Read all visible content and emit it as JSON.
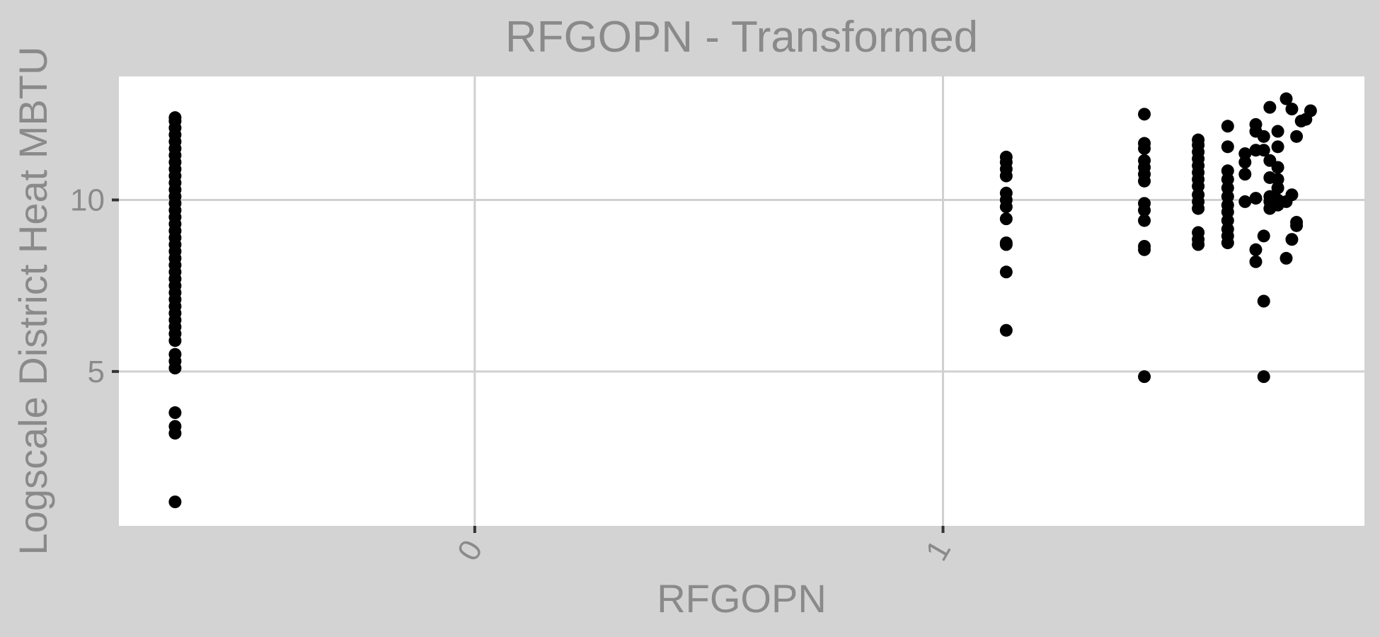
{
  "chart_data": {
    "type": "scatter",
    "title": "RFGOPN - Transformed",
    "xlabel": "RFGOPN",
    "ylabel": "Logscale District Heat MBTU",
    "x_ticks": [
      {
        "value": 0,
        "label": "0"
      },
      {
        "value": 1,
        "label": "1"
      }
    ],
    "y_ticks": [
      {
        "value": 5,
        "label": "5"
      },
      {
        "value": 10,
        "label": "10"
      }
    ],
    "xlim": [
      -0.76,
      1.9
    ],
    "ylim": [
      0.5,
      13.6
    ],
    "grid": true,
    "series": [
      {
        "values": [
          {
            "x": -0.64,
            "y": 1.2
          },
          {
            "x": -0.64,
            "y": 3.2
          },
          {
            "x": -0.64,
            "y": 3.4
          },
          {
            "x": -0.64,
            "y": 3.8
          },
          {
            "x": -0.64,
            "y": 5.1
          },
          {
            "x": -0.64,
            "y": 5.3
          },
          {
            "x": -0.64,
            "y": 5.5
          },
          {
            "x": -0.64,
            "y": 5.9
          },
          {
            "x": -0.64,
            "y": 6.1
          },
          {
            "x": -0.64,
            "y": 6.3
          },
          {
            "x": -0.64,
            "y": 6.5
          },
          {
            "x": -0.64,
            "y": 6.7
          },
          {
            "x": -0.64,
            "y": 6.9
          },
          {
            "x": -0.64,
            "y": 7.1
          },
          {
            "x": -0.64,
            "y": 7.3
          },
          {
            "x": -0.64,
            "y": 7.5
          },
          {
            "x": -0.64,
            "y": 7.7
          },
          {
            "x": -0.64,
            "y": 7.9
          },
          {
            "x": -0.64,
            "y": 8.1
          },
          {
            "x": -0.64,
            "y": 8.3
          },
          {
            "x": -0.64,
            "y": 8.5
          },
          {
            "x": -0.64,
            "y": 8.7
          },
          {
            "x": -0.64,
            "y": 8.9
          },
          {
            "x": -0.64,
            "y": 9.1
          },
          {
            "x": -0.64,
            "y": 9.3
          },
          {
            "x": -0.64,
            "y": 9.5
          },
          {
            "x": -0.64,
            "y": 9.7
          },
          {
            "x": -0.64,
            "y": 9.9
          },
          {
            "x": -0.64,
            "y": 10.1
          },
          {
            "x": -0.64,
            "y": 10.3
          },
          {
            "x": -0.64,
            "y": 10.5
          },
          {
            "x": -0.64,
            "y": 10.7
          },
          {
            "x": -0.64,
            "y": 10.9
          },
          {
            "x": -0.64,
            "y": 11.1
          },
          {
            "x": -0.64,
            "y": 11.3
          },
          {
            "x": -0.64,
            "y": 11.5
          },
          {
            "x": -0.64,
            "y": 11.7
          },
          {
            "x": -0.64,
            "y": 11.9
          },
          {
            "x": -0.64,
            "y": 12.1
          },
          {
            "x": -0.64,
            "y": 12.3
          },
          {
            "x": -0.64,
            "y": 12.4
          },
          {
            "x": 1.135,
            "y": 6.2
          },
          {
            "x": 1.135,
            "y": 7.9
          },
          {
            "x": 1.135,
            "y": 8.7
          },
          {
            "x": 1.135,
            "y": 8.75
          },
          {
            "x": 1.135,
            "y": 9.45
          },
          {
            "x": 1.135,
            "y": 9.8
          },
          {
            "x": 1.135,
            "y": 10.0
          },
          {
            "x": 1.135,
            "y": 10.2
          },
          {
            "x": 1.135,
            "y": 10.7
          },
          {
            "x": 1.135,
            "y": 10.9
          },
          {
            "x": 1.135,
            "y": 11.1
          },
          {
            "x": 1.135,
            "y": 11.25
          },
          {
            "x": 1.43,
            "y": 4.85
          },
          {
            "x": 1.43,
            "y": 8.55
          },
          {
            "x": 1.43,
            "y": 8.65
          },
          {
            "x": 1.43,
            "y": 9.4
          },
          {
            "x": 1.43,
            "y": 9.7
          },
          {
            "x": 1.43,
            "y": 9.9
          },
          {
            "x": 1.43,
            "y": 10.55
          },
          {
            "x": 1.43,
            "y": 10.75
          },
          {
            "x": 1.43,
            "y": 10.95
          },
          {
            "x": 1.43,
            "y": 11.15
          },
          {
            "x": 1.43,
            "y": 11.5
          },
          {
            "x": 1.43,
            "y": 11.65
          },
          {
            "x": 1.43,
            "y": 12.5
          },
          {
            "x": 1.545,
            "y": 8.7
          },
          {
            "x": 1.545,
            "y": 8.85
          },
          {
            "x": 1.545,
            "y": 9.05
          },
          {
            "x": 1.545,
            "y": 9.75
          },
          {
            "x": 1.545,
            "y": 9.95
          },
          {
            "x": 1.545,
            "y": 10.15
          },
          {
            "x": 1.545,
            "y": 10.4
          },
          {
            "x": 1.545,
            "y": 10.6
          },
          {
            "x": 1.545,
            "y": 10.8
          },
          {
            "x": 1.545,
            "y": 11.0
          },
          {
            "x": 1.545,
            "y": 11.2
          },
          {
            "x": 1.545,
            "y": 11.4
          },
          {
            "x": 1.545,
            "y": 11.6
          },
          {
            "x": 1.545,
            "y": 11.75
          },
          {
            "x": 1.608,
            "y": 8.75
          },
          {
            "x": 1.608,
            "y": 8.95
          },
          {
            "x": 1.608,
            "y": 9.15
          },
          {
            "x": 1.608,
            "y": 9.4
          },
          {
            "x": 1.608,
            "y": 9.65
          },
          {
            "x": 1.608,
            "y": 9.85
          },
          {
            "x": 1.608,
            "y": 10.1
          },
          {
            "x": 1.608,
            "y": 10.35
          },
          {
            "x": 1.608,
            "y": 10.6
          },
          {
            "x": 1.608,
            "y": 10.85
          },
          {
            "x": 1.608,
            "y": 11.55
          },
          {
            "x": 1.608,
            "y": 12.15
          },
          {
            "x": 1.645,
            "y": 9.95
          },
          {
            "x": 1.645,
            "y": 10.75
          },
          {
            "x": 1.645,
            "y": 11.1
          },
          {
            "x": 1.645,
            "y": 11.35
          },
          {
            "x": 1.668,
            "y": 8.2
          },
          {
            "x": 1.668,
            "y": 8.55
          },
          {
            "x": 1.668,
            "y": 10.05
          },
          {
            "x": 1.668,
            "y": 11.45
          },
          {
            "x": 1.668,
            "y": 12.0
          },
          {
            "x": 1.668,
            "y": 12.2
          },
          {
            "x": 1.685,
            "y": 4.85
          },
          {
            "x": 1.685,
            "y": 7.05
          },
          {
            "x": 1.685,
            "y": 8.95
          },
          {
            "x": 1.685,
            "y": 11.45
          },
          {
            "x": 1.685,
            "y": 11.85
          },
          {
            "x": 1.698,
            "y": 9.75
          },
          {
            "x": 1.698,
            "y": 9.95
          },
          {
            "x": 1.698,
            "y": 10.1
          },
          {
            "x": 1.698,
            "y": 10.65
          },
          {
            "x": 1.698,
            "y": 11.15
          },
          {
            "x": 1.698,
            "y": 12.7
          },
          {
            "x": 1.715,
            "y": 9.85
          },
          {
            "x": 1.715,
            "y": 10.0
          },
          {
            "x": 1.715,
            "y": 10.35
          },
          {
            "x": 1.715,
            "y": 10.6
          },
          {
            "x": 1.715,
            "y": 10.95
          },
          {
            "x": 1.715,
            "y": 11.55
          },
          {
            "x": 1.715,
            "y": 12.0
          },
          {
            "x": 1.733,
            "y": 8.3
          },
          {
            "x": 1.733,
            "y": 9.95
          },
          {
            "x": 1.733,
            "y": 12.95
          },
          {
            "x": 1.745,
            "y": 8.85
          },
          {
            "x": 1.745,
            "y": 10.15
          },
          {
            "x": 1.745,
            "y": 12.65
          },
          {
            "x": 1.755,
            "y": 9.25
          },
          {
            "x": 1.755,
            "y": 9.35
          },
          {
            "x": 1.755,
            "y": 11.85
          },
          {
            "x": 1.765,
            "y": 12.3
          },
          {
            "x": 1.775,
            "y": 12.35
          },
          {
            "x": 1.785,
            "y": 12.6
          }
        ]
      }
    ]
  }
}
